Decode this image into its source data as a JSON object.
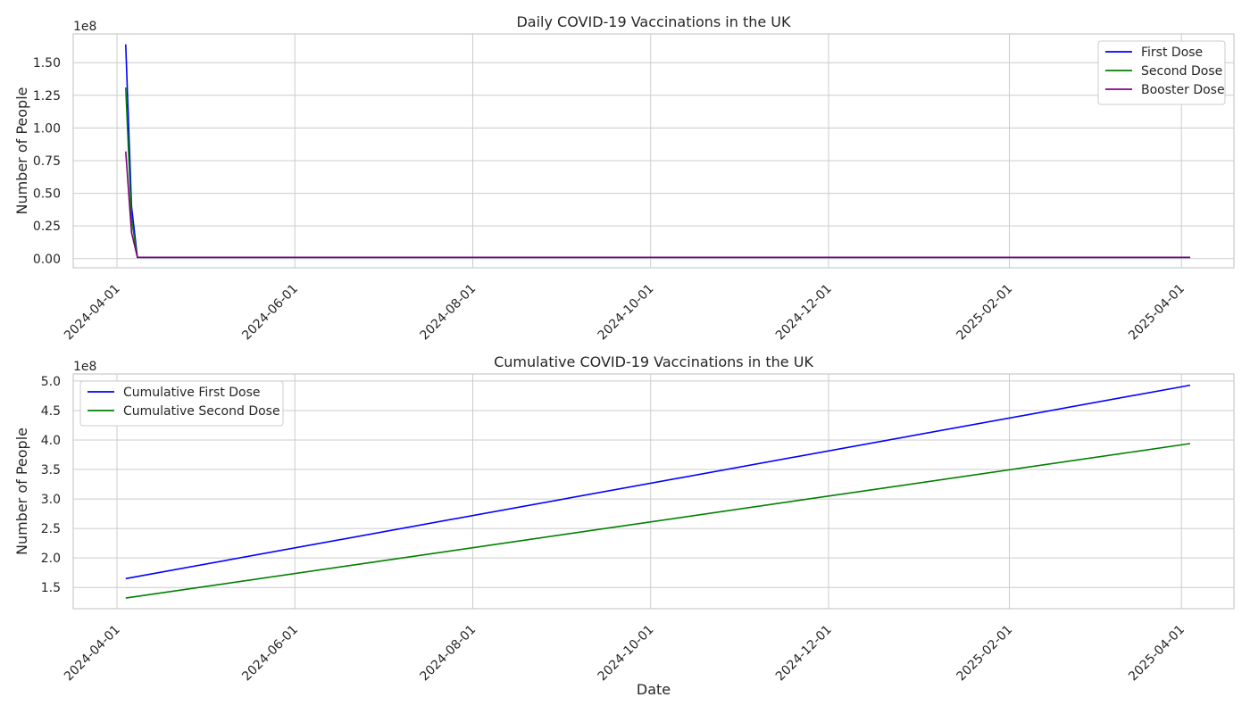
{
  "chart_data": [
    {
      "type": "line",
      "title": "Daily COVID-19 Vaccinations in the UK",
      "xlabel": "",
      "ylabel": "Number of People",
      "offset_text": "1e8",
      "x_ticks": [
        "2024-04-01",
        "2024-06-01",
        "2024-08-01",
        "2024-10-01",
        "2024-12-01",
        "2025-02-01",
        "2025-04-01"
      ],
      "y_ticks": [
        "0.00",
        "0.25",
        "0.50",
        "0.75",
        "1.00",
        "1.25",
        "1.50"
      ],
      "y_tick_values": [
        0,
        0.25,
        0.5,
        0.75,
        1.0,
        1.25,
        1.5
      ],
      "xlim": [
        "2024-03-17",
        "2025-04-19"
      ],
      "ylim": [
        -0.07,
        1.72
      ],
      "y_scale": 100000000.0,
      "grid": true,
      "legend_position": "top-right",
      "series": [
        {
          "name": "First Dose",
          "color": "#0000ff",
          "x": [
            "2024-04-04",
            "2024-04-06",
            "2024-04-08",
            "2025-04-04"
          ],
          "y": [
            1.64,
            0.4,
            0.01,
            0.01
          ]
        },
        {
          "name": "Second Dose",
          "color": "#008000",
          "x": [
            "2024-04-04",
            "2024-04-06",
            "2024-04-08",
            "2025-04-04"
          ],
          "y": [
            1.31,
            0.3,
            0.01,
            0.01
          ]
        },
        {
          "name": "Booster Dose",
          "color": "#800080",
          "x": [
            "2024-04-04",
            "2024-04-06",
            "2024-04-08",
            "2025-04-04"
          ],
          "y": [
            0.82,
            0.2,
            0.01,
            0.01
          ]
        }
      ]
    },
    {
      "type": "line",
      "title": "Cumulative COVID-19 Vaccinations in the UK",
      "xlabel": "Date",
      "ylabel": "Number of People",
      "offset_text": "1e8",
      "x_ticks": [
        "2024-04-01",
        "2024-06-01",
        "2024-08-01",
        "2024-10-01",
        "2024-12-01",
        "2025-02-01",
        "2025-04-01"
      ],
      "y_ticks": [
        "1.5",
        "2.0",
        "2.5",
        "3.0",
        "3.5",
        "4.0",
        "4.5",
        "5.0"
      ],
      "y_tick_values": [
        1.5,
        2.0,
        2.5,
        3.0,
        3.5,
        4.0,
        4.5,
        5.0
      ],
      "xlim": [
        "2024-03-17",
        "2025-04-19"
      ],
      "ylim": [
        1.14,
        5.12
      ],
      "y_scale": 100000000.0,
      "grid": true,
      "legend_position": "top-left",
      "series": [
        {
          "name": "Cumulative First Dose",
          "color": "#0000ff",
          "x": [
            "2024-04-04",
            "2025-04-04"
          ],
          "y": [
            1.65,
            4.93
          ]
        },
        {
          "name": "Cumulative Second Dose",
          "color": "#008000",
          "x": [
            "2024-04-04",
            "2025-04-04"
          ],
          "y": [
            1.32,
            3.94
          ]
        }
      ]
    }
  ]
}
